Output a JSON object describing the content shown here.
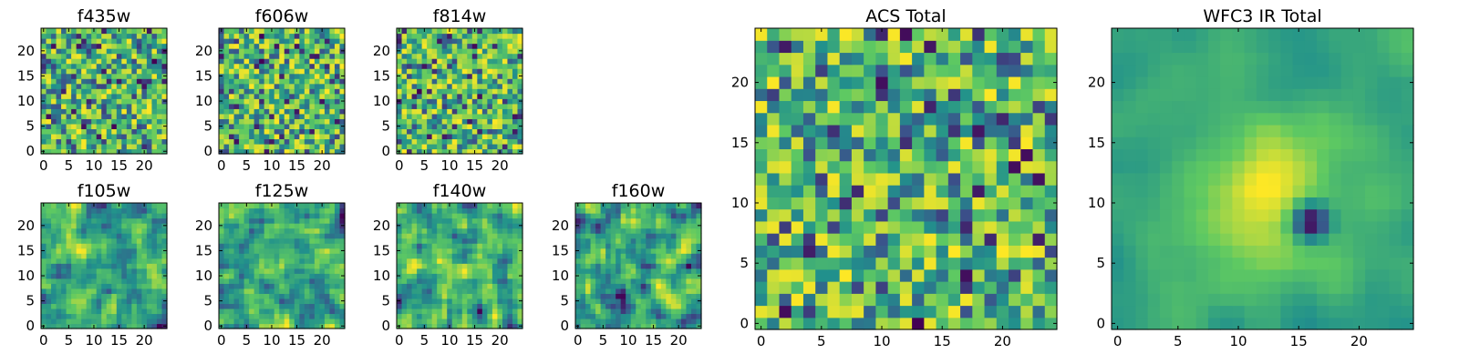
{
  "chart_data": [
    {
      "type": "heatmap",
      "title": "f435w",
      "texture": "fine",
      "seed": 11,
      "grid_size": 25,
      "xlim": [
        0,
        24
      ],
      "ylim": [
        0,
        24
      ],
      "xticks": [
        0,
        5,
        10,
        15,
        20
      ],
      "yticks": [
        0,
        5,
        10,
        15,
        20
      ]
    },
    {
      "type": "heatmap",
      "title": "f606w",
      "texture": "fine",
      "seed": 23,
      "grid_size": 25,
      "xlim": [
        0,
        24
      ],
      "ylim": [
        0,
        24
      ],
      "xticks": [
        0,
        5,
        10,
        15,
        20
      ],
      "yticks": [
        0,
        5,
        10,
        15,
        20
      ]
    },
    {
      "type": "heatmap",
      "title": "f814w",
      "texture": "fine",
      "seed": 37,
      "grid_size": 25,
      "xlim": [
        0,
        24
      ],
      "ylim": [
        0,
        24
      ],
      "xticks": [
        0,
        5,
        10,
        15,
        20
      ],
      "yticks": [
        0,
        5,
        10,
        15,
        20
      ]
    },
    {
      "type": "heatmap",
      "title": "f105w",
      "texture": "smooth",
      "seed": 41,
      "grid_size": 25,
      "xlim": [
        0,
        24
      ],
      "ylim": [
        0,
        24
      ],
      "xticks": [
        0,
        5,
        10,
        15,
        20
      ],
      "yticks": [
        0,
        5,
        10,
        15,
        20
      ]
    },
    {
      "type": "heatmap",
      "title": "f125w",
      "texture": "smooth",
      "seed": 53,
      "grid_size": 25,
      "xlim": [
        0,
        24
      ],
      "ylim": [
        0,
        24
      ],
      "xticks": [
        0,
        5,
        10,
        15,
        20
      ],
      "yticks": [
        0,
        5,
        10,
        15,
        20
      ]
    },
    {
      "type": "heatmap",
      "title": "f140w",
      "texture": "smooth",
      "seed": 67,
      "grid_size": 25,
      "xlim": [
        0,
        24
      ],
      "ylim": [
        0,
        24
      ],
      "xticks": [
        0,
        5,
        10,
        15,
        20
      ],
      "yticks": [
        0,
        5,
        10,
        15,
        20
      ]
    },
    {
      "type": "heatmap",
      "title": "f160w",
      "texture": "smooth",
      "seed": 79,
      "grid_size": 25,
      "xlim": [
        0,
        24
      ],
      "ylim": [
        0,
        24
      ],
      "xticks": [
        0,
        5,
        10,
        15,
        20
      ],
      "yticks": [
        0,
        5,
        10,
        15,
        20
      ]
    },
    {
      "type": "heatmap",
      "title": "ACS Total",
      "texture": "fine",
      "seed": 97,
      "grid_size": 25,
      "xlim": [
        0,
        24
      ],
      "ylim": [
        0,
        24
      ],
      "xticks": [
        0,
        5,
        10,
        15,
        20
      ],
      "yticks": [
        0,
        5,
        10,
        15,
        20
      ]
    },
    {
      "type": "heatmap",
      "title": "WFC3 IR Total",
      "texture": "blob",
      "seed": 101,
      "grid_size": 25,
      "xlim": [
        0,
        24
      ],
      "ylim": [
        0,
        24
      ],
      "xticks": [
        0,
        5,
        10,
        15,
        20
      ],
      "yticks": [
        0,
        5,
        10,
        15,
        20
      ]
    }
  ],
  "colormap": [
    "#440154",
    "#3b528b",
    "#21918c",
    "#5ec962",
    "#fde725"
  ]
}
